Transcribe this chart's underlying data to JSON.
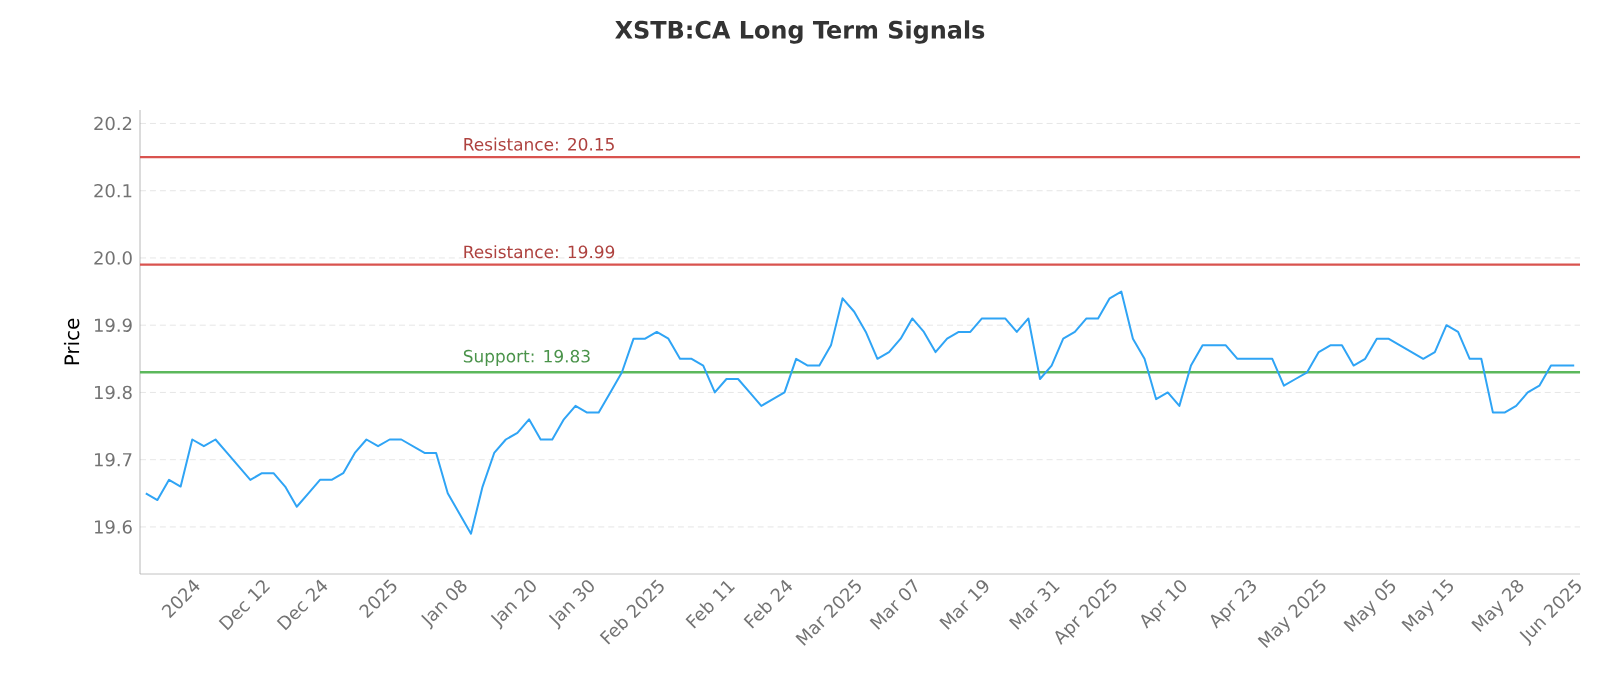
{
  "chart_data": {
    "type": "line",
    "title": "XSTB:CA Long Term Signals",
    "ylabel": "Price",
    "categories": [
      null,
      null,
      null,
      null,
      "2024",
      null,
      null,
      null,
      null,
      null,
      "Dec 12",
      null,
      null,
      null,
      null,
      "Dec 24",
      null,
      null,
      null,
      null,
      null,
      "2025",
      null,
      null,
      null,
      null,
      null,
      "Jan 08",
      null,
      null,
      null,
      null,
      null,
      "Jan 20",
      null,
      null,
      null,
      null,
      "Jan 30",
      null,
      null,
      null,
      null,
      null,
      "Feb 2025",
      null,
      null,
      null,
      null,
      null,
      "Feb 11",
      null,
      null,
      null,
      null,
      "Feb 24",
      null,
      null,
      null,
      null,
      null,
      "Mar 2025",
      null,
      null,
      null,
      null,
      "Mar 07",
      null,
      null,
      null,
      null,
      null,
      "Mar 19",
      null,
      null,
      null,
      null,
      null,
      "Mar 31",
      null,
      null,
      null,
      null,
      "Apr 2025",
      null,
      null,
      null,
      null,
      null,
      "Apr 10",
      null,
      null,
      null,
      null,
      null,
      "Apr 23",
      null,
      null,
      null,
      null,
      null,
      "May 2025",
      null,
      null,
      null,
      null,
      null,
      "May 05",
      null,
      null,
      null,
      null,
      "May 15",
      null,
      null,
      null,
      null,
      null,
      "May 28",
      null,
      null,
      null,
      null,
      "Jun 2025"
    ],
    "series": [
      {
        "color": "#2fa4f5",
        "values": [
          19.65,
          19.64,
          19.67,
          19.66,
          19.73,
          19.72,
          19.73,
          19.71,
          19.69,
          19.67,
          19.68,
          19.68,
          19.66,
          19.63,
          19.65,
          19.67,
          19.67,
          19.68,
          19.71,
          19.73,
          19.72,
          19.73,
          19.73,
          19.72,
          19.71,
          19.71,
          19.65,
          19.62,
          19.59,
          19.66,
          19.71,
          19.73,
          19.74,
          19.76,
          19.73,
          19.73,
          19.76,
          19.78,
          19.77,
          19.77,
          19.8,
          19.83,
          19.88,
          19.88,
          19.89,
          19.88,
          19.85,
          19.85,
          19.84,
          19.8,
          19.82,
          19.82,
          19.8,
          19.78,
          19.79,
          19.8,
          19.85,
          19.84,
          19.84,
          19.87,
          19.94,
          19.92,
          19.89,
          19.85,
          19.86,
          19.88,
          19.91,
          19.89,
          19.86,
          19.88,
          19.89,
          19.89,
          19.91,
          19.91,
          19.91,
          19.89,
          19.91,
          19.82,
          19.84,
          19.88,
          19.89,
          19.91,
          19.91,
          19.94,
          19.95,
          19.88,
          19.85,
          19.79,
          19.8,
          19.78,
          19.84,
          19.87,
          19.87,
          19.87,
          19.85,
          19.85,
          19.85,
          19.85,
          19.81,
          19.82,
          19.83,
          19.86,
          19.87,
          19.87,
          19.84,
          19.85,
          19.88,
          19.88,
          19.87,
          19.86,
          19.85,
          19.86,
          19.9,
          19.89,
          19.85,
          19.85,
          19.77,
          19.77,
          19.78,
          19.8,
          19.81,
          19.84,
          19.84,
          19.84
        ]
      }
    ],
    "ylim": [
      19.53,
      20.22
    ],
    "yticks": [
      19.6,
      19.7,
      19.8,
      19.9,
      {
        "value": 20.0,
        "label": "20.0"
      },
      20.1,
      20.2
    ],
    "grid": "y",
    "ref_lines": [
      {
        "axis": "y",
        "value": 20.15,
        "label": "Resistance: 20.15",
        "color": "#d9534f"
      },
      {
        "axis": "y",
        "value": 19.99,
        "label": "Resistance: 19.99",
        "color": "#d9534f"
      },
      {
        "axis": "y",
        "value": 19.83,
        "label": "Support: 19.83",
        "color": "#5cb85c"
      }
    ]
  }
}
